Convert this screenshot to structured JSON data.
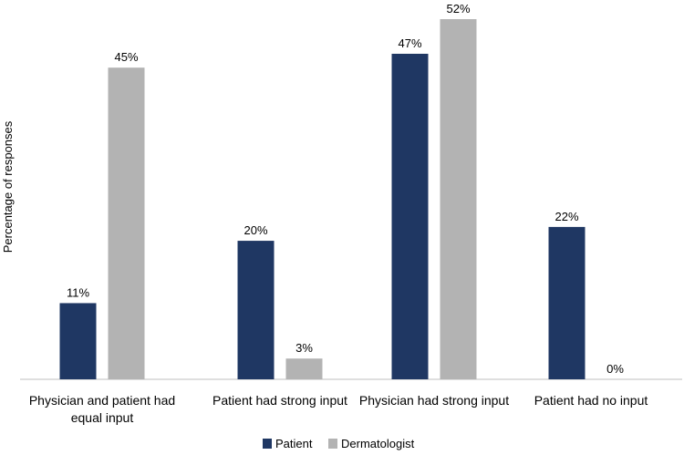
{
  "chart_data": {
    "type": "bar",
    "title": "",
    "xlabel": "",
    "ylabel": "Percentage of responses",
    "categories": [
      [
        "Physician and patient had",
        "equal input"
      ],
      [
        "Patient had strong input"
      ],
      [
        "Physician had strong input"
      ],
      [
        "Patient had no input"
      ]
    ],
    "series": [
      {
        "name": "Patient",
        "color": "#1f3763",
        "values": [
          11,
          20,
          47,
          22
        ],
        "labels": [
          "11%",
          "20%",
          "47%",
          "22%"
        ]
      },
      {
        "name": "Dermatologist",
        "color": "#b3b3b3",
        "values": [
          45,
          3,
          52,
          0
        ],
        "labels": [
          "45%",
          "3%",
          "52%",
          "0%"
        ]
      }
    ],
    "ylim": [
      0,
      52
    ],
    "grid": false,
    "legend_position": "bottom"
  }
}
